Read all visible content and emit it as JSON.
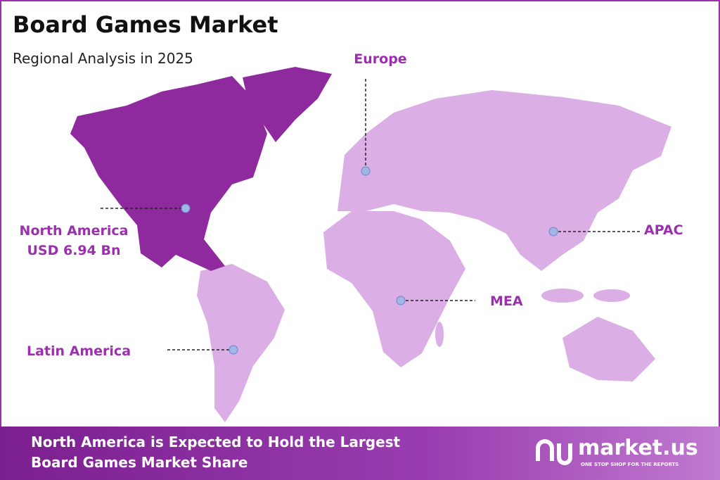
{
  "header": {
    "title": "Board Games Market",
    "subtitle": "Regional Analysis in 2025"
  },
  "regions": [
    {
      "label": "North America",
      "value": "USD 6.94 Bn"
    },
    {
      "label": "Europe"
    },
    {
      "label": "APAC"
    },
    {
      "label": "MEA"
    },
    {
      "label": "Latin America"
    }
  ],
  "footer": {
    "text_lines": [
      "North America is Expected to Hold the Largest",
      "Board Games Market Share"
    ],
    "logo": "market.us",
    "tagline": "ONE STOP SHOP FOR THE REPORTS"
  }
}
